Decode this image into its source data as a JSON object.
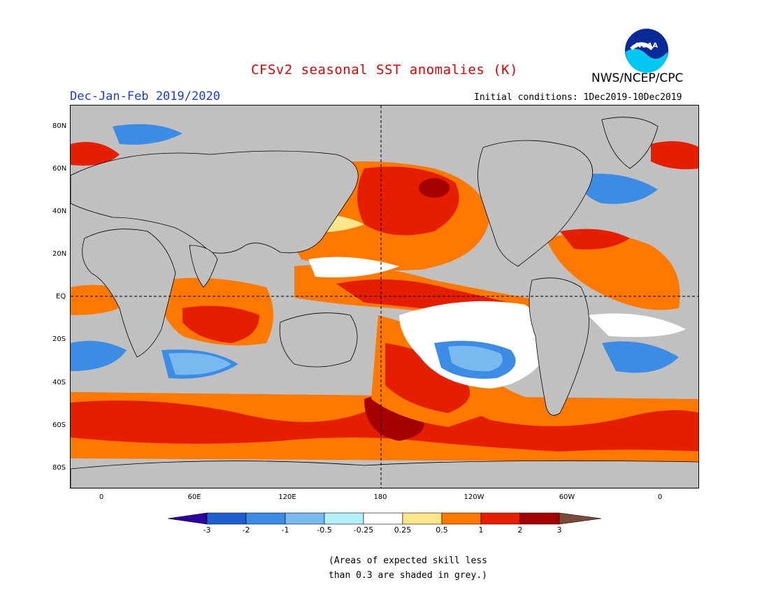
{
  "header": {
    "title": "CFSv2 seasonal SST anomalies (K)",
    "agency": "NWS/NCEP/CPC",
    "logo_text": "NOAA",
    "period": "Dec-Jan-Feb 2019/2020",
    "initial_conditions": "Initial conditions: 1Dec2019-10Dec2019"
  },
  "map": {
    "lat_labels": [
      "80N",
      "60N",
      "40N",
      "20N",
      "EQ",
      "20S",
      "40S",
      "60S",
      "80S"
    ],
    "lon_labels": [
      "0",
      "60E",
      "120E",
      "180",
      "120W",
      "60W",
      "0"
    ],
    "land_color": "#c0c0c0",
    "reference_lines": [
      "equator",
      "dateline"
    ]
  },
  "colorbar": {
    "labels": [
      "-3",
      "-2",
      "-1",
      "-0.5",
      "-0.25",
      "0.25",
      "0.5",
      "1",
      "2",
      "3"
    ],
    "colors": [
      "#2f00a0",
      "#1e5fd0",
      "#3c8ce6",
      "#78b9f0",
      "#b4f0fa",
      "#ffffff",
      "#ffe68c",
      "#ff7800",
      "#e61e00",
      "#a50000",
      "#7a4a3a"
    ]
  },
  "footnote": {
    "line1": "(Areas of expected skill less",
    "line2": "than 0.3 are shaded in grey.)"
  }
}
